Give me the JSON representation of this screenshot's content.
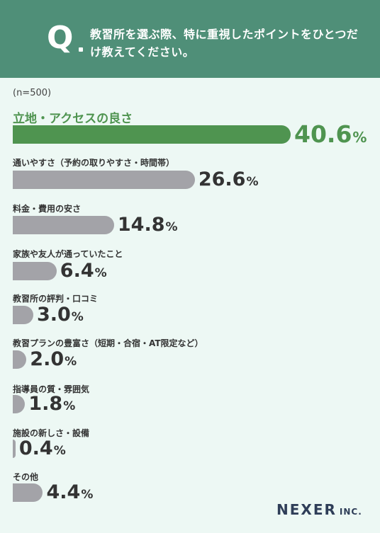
{
  "header": {
    "q": "Q",
    "question": "教習所を選ぶ際、特に重視したポイントをひとつだけ教えてください。"
  },
  "n_label": "(n=500)",
  "chart_data": {
    "type": "bar",
    "orientation": "horizontal",
    "categories": [
      "立地・アクセスの良さ",
      "通いやすさ（予約の取りやすさ・時間帯）",
      "料金・費用の安さ",
      "家族や友人が通っていたこと",
      "教習所の評判・口コミ",
      "教習プランの豊富さ（短期・合宿・AT限定など）",
      "指導員の質・雰囲気",
      "施設の新しさ・設備",
      "その他"
    ],
    "values": [
      40.6,
      26.6,
      14.8,
      6.4,
      3.0,
      2.0,
      1.8,
      0.4,
      4.4
    ],
    "value_labels": [
      "40.6",
      "26.6",
      "14.8",
      "6.4",
      "3.0",
      "2.0",
      "1.8",
      "0.4",
      "4.4"
    ],
    "unit": "%",
    "highlight_color": "#4f9450",
    "bar_color": "#a3a3a8"
  },
  "logo": {
    "name": "NEXER",
    "suffix": "INC."
  }
}
